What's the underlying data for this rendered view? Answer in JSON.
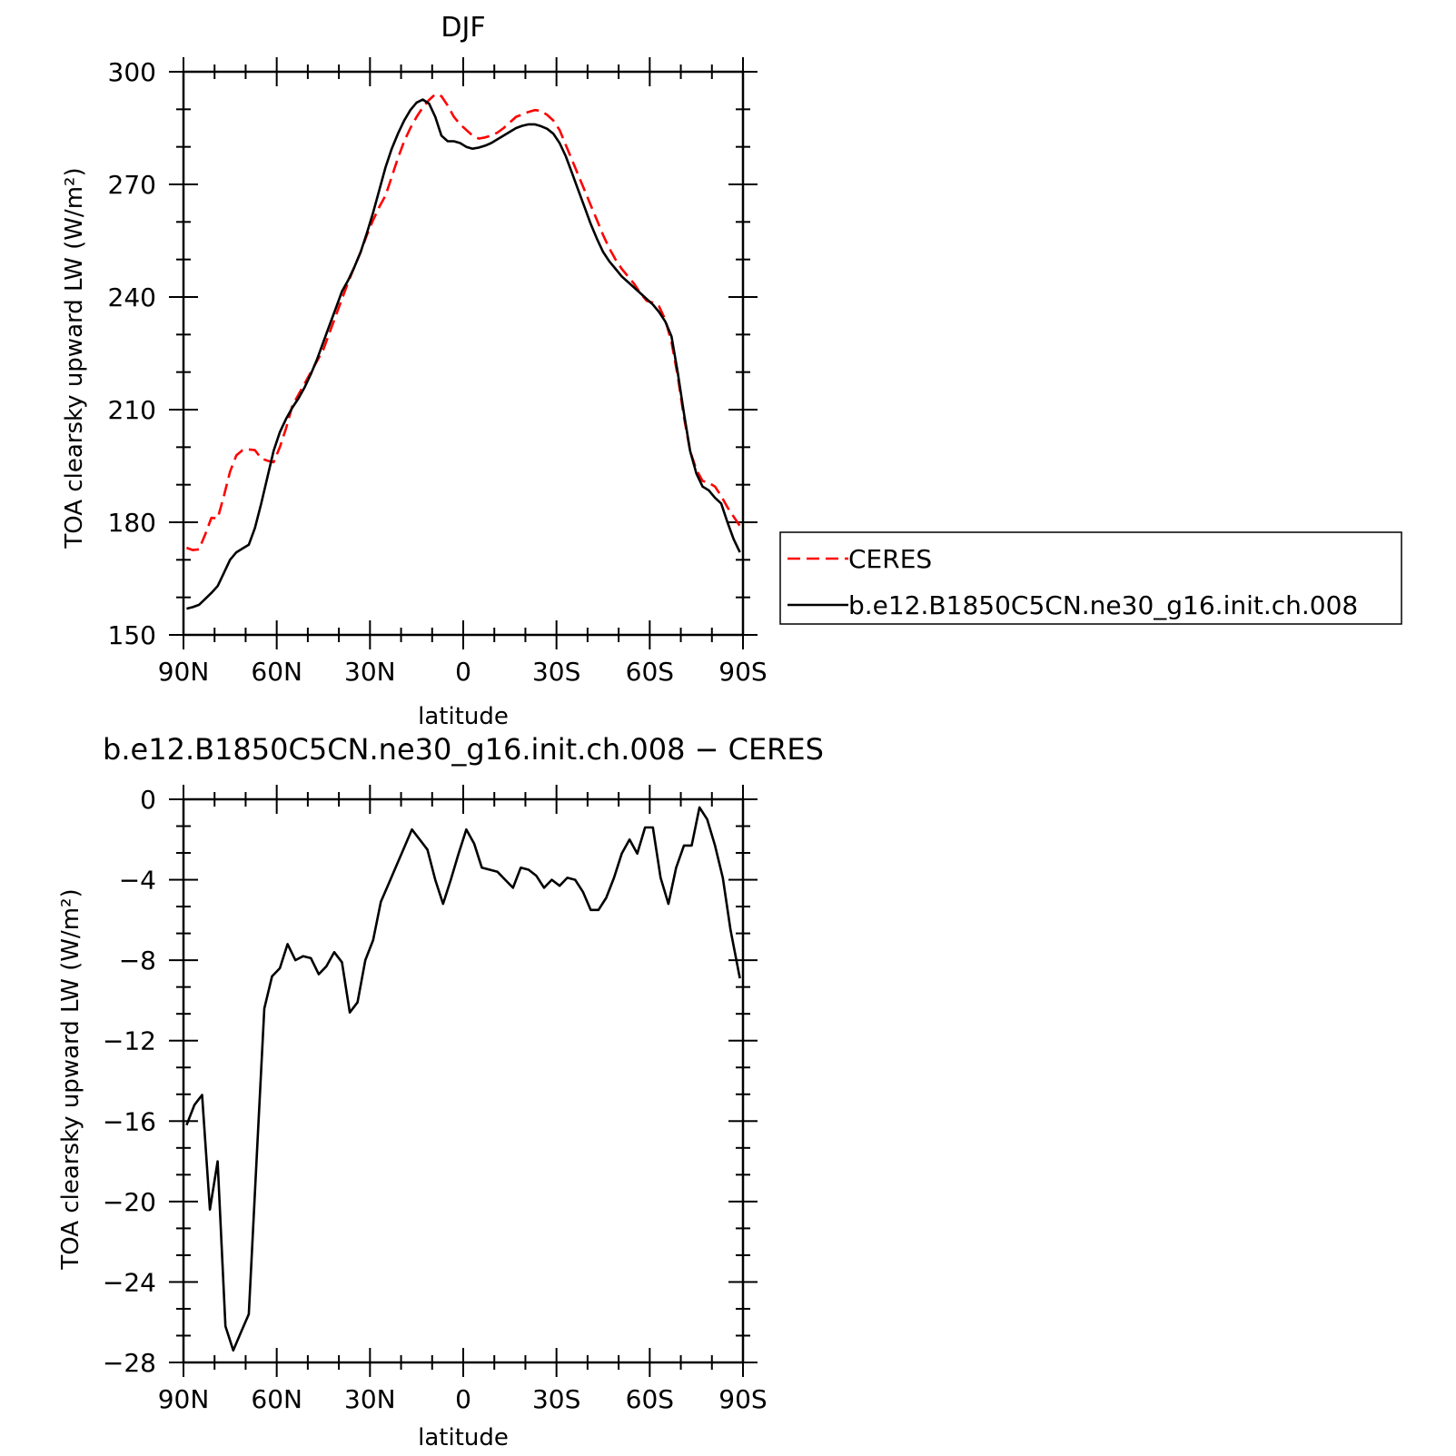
{
  "chart_data": [
    {
      "type": "line",
      "title": "DJF",
      "xlabel": "latitude",
      "ylabel": "TOA clearsky upward LW (W/m²)",
      "xlim": [
        90,
        -90
      ],
      "ylim": [
        150,
        300
      ],
      "xticks": [
        90,
        60,
        30,
        0,
        -30,
        -60,
        -90
      ],
      "xtick_labels": [
        "90N",
        "60N",
        "30N",
        "0",
        "30S",
        "60S",
        "90S"
      ],
      "yticks": [
        150,
        180,
        210,
        240,
        270,
        300
      ],
      "ytick_labels": [
        "150",
        "180",
        "210",
        "240",
        "270",
        "300"
      ],
      "legend_position": "right",
      "series": [
        {
          "name": "CERES",
          "color": "#ff0000",
          "dash": "dashed",
          "x": [
            89,
            87,
            85,
            83,
            81,
            79,
            77,
            75,
            73,
            71,
            69,
            67,
            65,
            63,
            61,
            59,
            57,
            55,
            53,
            51,
            49,
            47,
            45,
            43,
            41,
            39,
            37,
            35,
            33,
            31,
            29,
            27,
            25,
            23,
            21,
            19,
            17,
            15,
            13,
            11,
            9,
            7,
            5,
            3,
            1,
            -1,
            -3,
            -5,
            -7,
            -9,
            -11,
            -13,
            -15,
            -17,
            -19,
            -21,
            -23,
            -25,
            -27,
            -29,
            -31,
            -33,
            -35,
            -37,
            -39,
            -41,
            -43,
            -45,
            -47,
            -49,
            -51,
            -53,
            -55,
            -57,
            -59,
            -61,
            -63,
            -65,
            -67,
            -69,
            -71,
            -73,
            -75,
            -77,
            -79,
            -81,
            -83,
            -85,
            -87,
            -89
          ],
          "values": [
            173.2,
            172.6,
            172.8,
            176.8,
            181.2,
            181.0,
            187.0,
            193.5,
            197.8,
            199.2,
            199.4,
            199.2,
            197.0,
            196.4,
            196.0,
            200.0,
            205.0,
            211.0,
            214.0,
            217.0,
            220.0,
            223.0,
            226.0,
            230.5,
            235.0,
            239.5,
            244.0,
            248.0,
            252.0,
            256.5,
            260.5,
            264.0,
            267.0,
            272.0,
            277.0,
            281.5,
            285.0,
            288.0,
            290.5,
            292.5,
            294.0,
            293.5,
            291.0,
            288.0,
            286.0,
            284.5,
            283.0,
            282.2,
            282.5,
            283.0,
            283.8,
            285.0,
            286.5,
            288.0,
            288.6,
            289.3,
            289.8,
            289.6,
            288.5,
            287.0,
            284.5,
            280.5,
            276.5,
            272.5,
            268.5,
            264.5,
            260.5,
            256.5,
            253.0,
            250.0,
            247.5,
            245.5,
            243.5,
            241.0,
            239.0,
            238.5,
            237.5,
            234.0,
            228.0,
            219.0,
            208.0,
            199.0,
            194.0,
            191.0,
            190.5,
            189.5,
            187.0,
            184.0,
            181.5,
            179.0
          ]
        },
        {
          "name": "b.e12.B1850C5CN.ne30_g16.init.ch.008",
          "color": "#000000",
          "dash": "solid",
          "x": [
            89,
            87,
            85,
            83,
            81,
            79,
            77,
            75,
            73,
            71,
            69,
            67,
            65,
            63,
            61,
            59,
            57,
            55,
            53,
            51,
            49,
            47,
            45,
            43,
            41,
            39,
            37,
            35,
            33,
            31,
            29,
            27,
            25,
            23,
            21,
            19,
            17,
            15,
            13,
            11,
            9,
            7,
            5,
            3,
            1,
            -1,
            -3,
            -5,
            -7,
            -9,
            -11,
            -13,
            -15,
            -17,
            -19,
            -21,
            -23,
            -25,
            -27,
            -29,
            -31,
            -33,
            -35,
            -37,
            -39,
            -41,
            -43,
            -45,
            -47,
            -49,
            -51,
            -53,
            -55,
            -57,
            -59,
            -61,
            -63,
            -65,
            -67,
            -69,
            -71,
            -73,
            -75,
            -77,
            -79,
            -81,
            -83,
            -85,
            -87,
            -89
          ],
          "values": [
            157.0,
            157.4,
            158.0,
            159.6,
            161.2,
            163.0,
            166.5,
            170.0,
            172.0,
            173.0,
            174.0,
            178.5,
            185.0,
            192.0,
            199.0,
            204.0,
            207.5,
            210.5,
            213.0,
            216.0,
            219.5,
            223.5,
            228.0,
            232.5,
            237.0,
            241.5,
            244.5,
            248.0,
            252.0,
            257.0,
            262.5,
            268.5,
            274.5,
            279.5,
            283.5,
            287.0,
            289.8,
            291.8,
            292.6,
            291.5,
            288.0,
            283.0,
            281.5,
            281.5,
            281.0,
            280.0,
            279.5,
            279.8,
            280.3,
            281.0,
            282.0,
            283.0,
            284.0,
            285.0,
            285.6,
            286.0,
            286.0,
            285.5,
            284.8,
            283.5,
            281.0,
            277.5,
            273.0,
            268.5,
            264.0,
            259.5,
            255.5,
            252.0,
            249.5,
            247.5,
            245.5,
            244.0,
            242.5,
            241.0,
            239.5,
            238.0,
            236.0,
            233.5,
            229.5,
            220.0,
            209.0,
            199.0,
            193.0,
            189.5,
            188.5,
            186.5,
            185.0,
            180.0,
            175.5,
            172.0
          ]
        }
      ]
    },
    {
      "type": "line",
      "title": "b.e12.B1850C5CN.ne30_g16.init.ch.008 − CERES",
      "xlabel": "latitude",
      "ylabel": "TOA clearsky upward LW (W/m²)",
      "xlim": [
        90,
        -90
      ],
      "ylim": [
        -28,
        0
      ],
      "xticks": [
        90,
        60,
        30,
        0,
        -30,
        -60,
        -90
      ],
      "xtick_labels": [
        "90N",
        "60N",
        "30N",
        "0",
        "30S",
        "60S",
        "90S"
      ],
      "yticks": [
        -28,
        -24,
        -20,
        -16,
        -12,
        -8,
        -4,
        0
      ],
      "ytick_labels": [
        "−28",
        "−24",
        "−20",
        "−16",
        "−12",
        "−8",
        "−4",
        "0"
      ],
      "series": [
        {
          "color": "#000000",
          "dash": "solid",
          "x": [
            89,
            86.5,
            84,
            81.5,
            79,
            76.5,
            74,
            71.5,
            69,
            66.5,
            64,
            61.5,
            59,
            56.5,
            54,
            51.5,
            49,
            46.5,
            44,
            41.5,
            39,
            36.5,
            34,
            31.5,
            29,
            26.5,
            24,
            21.5,
            19,
            16.5,
            14,
            11.5,
            9,
            6.5,
            4,
            1.5,
            -1,
            -3.5,
            -6,
            -8.5,
            -11,
            -13.5,
            -16,
            -18.5,
            -21,
            -23.5,
            -26,
            -28.5,
            -31,
            -33.5,
            -36,
            -38.5,
            -41,
            -43.5,
            -46,
            -48.5,
            -51,
            -53.5,
            -56,
            -58.5,
            -61,
            -63.5,
            -66,
            -68.5,
            -71,
            -73.5,
            -76,
            -78.5,
            -81,
            -83.5,
            -86,
            -89
          ],
          "values": [
            -16.2,
            -15.2,
            -14.7,
            -20.4,
            -18.0,
            -26.2,
            -27.4,
            -26.5,
            -25.6,
            -18.0,
            -10.4,
            -8.8,
            -8.4,
            -7.2,
            -8.0,
            -7.8,
            -7.9,
            -8.7,
            -8.3,
            -7.6,
            -8.1,
            -10.6,
            -10.1,
            -8.0,
            -7.0,
            -5.1,
            -4.2,
            -3.3,
            -2.4,
            -1.5,
            -2.0,
            -2.5,
            -4.0,
            -5.2,
            -4.0,
            -2.7,
            -1.5,
            -2.2,
            -3.4,
            -3.5,
            -3.6,
            -4.0,
            -4.4,
            -3.4,
            -3.5,
            -3.8,
            -4.4,
            -4.0,
            -4.3,
            -3.9,
            -4.0,
            -4.6,
            -5.5,
            -5.5,
            -4.9,
            -3.9,
            -2.7,
            -2.0,
            -2.7,
            -1.4,
            -1.4,
            -3.9,
            -5.2,
            -3.4,
            -2.3,
            -2.3,
            -0.4,
            -1.0,
            -2.3,
            -3.9,
            -6.5,
            -8.9
          ]
        }
      ]
    }
  ]
}
